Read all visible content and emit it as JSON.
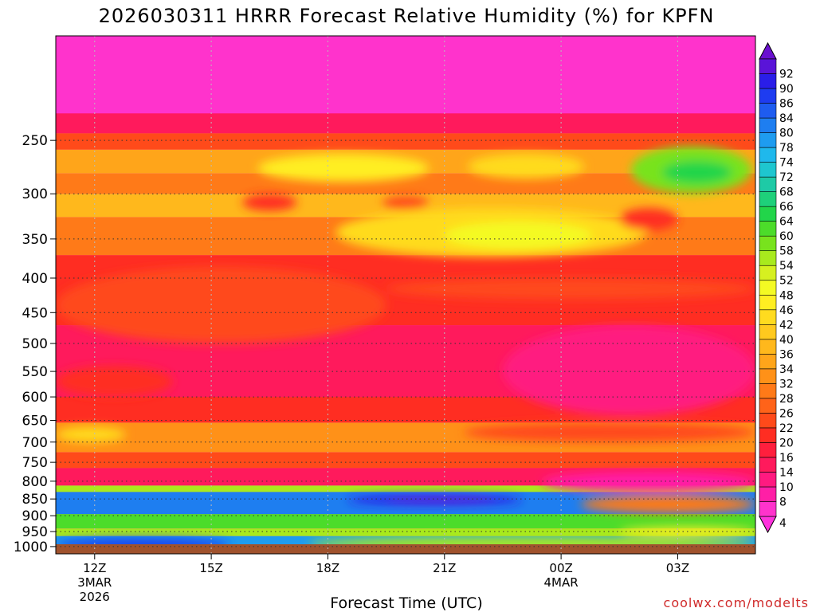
{
  "chart_data": {
    "type": "heatmap",
    "title": "2026030311 HRRR Forecast Relative Humidity (%) for KPFN",
    "xlabel": "Forecast Time (UTC)",
    "credit": "coolwx.com/modelts",
    "x_ticks": [
      {
        "label": "12Z",
        "sub": [
          "3MAR",
          "2026"
        ]
      },
      {
        "label": "15Z",
        "sub": []
      },
      {
        "label": "18Z",
        "sub": []
      },
      {
        "label": "21Z",
        "sub": []
      },
      {
        "label": "00Z",
        "sub": [
          "4MAR"
        ]
      },
      {
        "label": "03Z",
        "sub": []
      }
    ],
    "x_hours": [
      0,
      3,
      6,
      9,
      12,
      15
    ],
    "x_range_hours": [
      -1,
      17
    ],
    "y_ticks": [
      "250",
      "300",
      "350",
      "400",
      "450",
      "500",
      "550",
      "600",
      "650",
      "700",
      "750",
      "800",
      "850",
      "900",
      "950",
      "1000"
    ],
    "y_values": [
      250,
      300,
      350,
      400,
      450,
      500,
      550,
      600,
      650,
      700,
      750,
      800,
      850,
      900,
      950,
      1000
    ],
    "y_range_hpa": [
      175,
      1025
    ],
    "y_scale": "log",
    "colorbar": {
      "levels": [
        4,
        8,
        10,
        14,
        16,
        20,
        22,
        26,
        28,
        32,
        34,
        36,
        40,
        42,
        46,
        48,
        52,
        54,
        58,
        60,
        64,
        66,
        68,
        72,
        74,
        78,
        80,
        84,
        86,
        90,
        92
      ],
      "colors": [
        "#ff33cc",
        "#ff1fa6",
        "#ff1a80",
        "#ff1a5c",
        "#ff1f3d",
        "#ff2d22",
        "#ff4a1a",
        "#ff6319",
        "#ff7a18",
        "#ff9118",
        "#ffa51a",
        "#ffb81c",
        "#ffc91e",
        "#ffdb1f",
        "#ffee22",
        "#f4fa23",
        "#d6f020",
        "#a8ea1d",
        "#78e31d",
        "#4cdc2a",
        "#22d54a",
        "#1ed07a",
        "#1ecaa6",
        "#1ec6cf",
        "#1fb8ec",
        "#1e9cf0",
        "#1e7ef0",
        "#1e5cf0",
        "#1e3cf0",
        "#2a1ee8",
        "#5a14d8"
      ],
      "above_color": "#6a10d0",
      "below_color": "#ff33dd"
    },
    "bands": [
      {
        "p_top": 175,
        "p_bot": 228,
        "rh": 5
      },
      {
        "p_top": 228,
        "p_bot": 244,
        "rh": 15
      },
      {
        "p_top": 244,
        "p_bot": 258,
        "rh": 22
      },
      {
        "p_top": 258,
        "p_bot": 280,
        "rh": 35
      },
      {
        "p_top": 280,
        "p_bot": 300,
        "rh": 30
      },
      {
        "p_top": 300,
        "p_bot": 325,
        "rh": 36
      },
      {
        "p_top": 325,
        "p_bot": 370,
        "rh": 30
      },
      {
        "p_top": 370,
        "p_bot": 470,
        "rh": 21
      },
      {
        "p_top": 470,
        "p_bot": 600,
        "rh": 15
      },
      {
        "p_top": 600,
        "p_bot": 655,
        "rh": 21
      },
      {
        "p_top": 655,
        "p_bot": 725,
        "rh": 32
      },
      {
        "p_top": 725,
        "p_bot": 765,
        "rh": 22
      },
      {
        "p_top": 765,
        "p_bot": 812,
        "rh": 15
      },
      {
        "p_top": 812,
        "p_bot": 830,
        "rh": 55
      },
      {
        "p_top": 830,
        "p_bot": 895,
        "rh": 80
      },
      {
        "p_top": 895,
        "p_bot": 940,
        "rh": 62
      },
      {
        "p_top": 940,
        "p_bot": 965,
        "rh": 56
      },
      {
        "p_top": 965,
        "p_bot": 1015,
        "rh": 78
      }
    ],
    "features": [
      {
        "t0": 4.2,
        "t1": 8.6,
        "p_top": 262,
        "p_bot": 288,
        "rh": 46
      },
      {
        "t0": 9.6,
        "t1": 12.6,
        "p_top": 262,
        "p_bot": 285,
        "rh": 44
      },
      {
        "t0": 13.8,
        "t1": 16.9,
        "p_top": 255,
        "p_bot": 300,
        "rh": 58
      },
      {
        "t0": 14.6,
        "t1": 16.4,
        "p_top": 268,
        "p_bot": 290,
        "rh": 64
      },
      {
        "t0": 6.2,
        "t1": 14.2,
        "p_top": 315,
        "p_bot": 372,
        "rh": 44
      },
      {
        "t0": 9.0,
        "t1": 12.8,
        "p_top": 330,
        "p_bot": 362,
        "rh": 48
      },
      {
        "t0": 3.8,
        "t1": 5.2,
        "p_top": 300,
        "p_bot": 318,
        "rh": 20
      },
      {
        "t0": 7.4,
        "t1": 8.6,
        "p_top": 302,
        "p_bot": 316,
        "rh": 22
      },
      {
        "t0": 13.5,
        "t1": 15.0,
        "p_top": 315,
        "p_bot": 340,
        "rh": 20
      },
      {
        "t0": -1,
        "t1": 7.5,
        "p_top": 385,
        "p_bot": 500,
        "rh": 25
      },
      {
        "t0": 7.5,
        "t1": 17,
        "p_top": 400,
        "p_bot": 430,
        "rh": 25
      },
      {
        "t0": -1,
        "t1": 2.0,
        "p_top": 540,
        "p_bot": 600,
        "rh": 20
      },
      {
        "t0": 10.5,
        "t1": 17,
        "p_top": 470,
        "p_bot": 640,
        "rh": 10
      },
      {
        "t0": -1,
        "t1": 0.8,
        "p_top": 665,
        "p_bot": 700,
        "rh": 42
      },
      {
        "t0": 9.5,
        "t1": 17,
        "p_top": 655,
        "p_bot": 700,
        "rh": 24
      },
      {
        "t0": 11.5,
        "t1": 17,
        "p_top": 775,
        "p_bot": 830,
        "rh": 8
      },
      {
        "t0": 6.5,
        "t1": 11.0,
        "p_top": 838,
        "p_bot": 868,
        "rh": 90
      },
      {
        "t0": 7.5,
        "t1": 10.3,
        "p_top": 842,
        "p_bot": 862,
        "rh": 92
      },
      {
        "t0": 12.5,
        "t1": 17,
        "p_top": 840,
        "p_bot": 892,
        "rh": 28
      },
      {
        "t0": 13.5,
        "t1": 17,
        "p_top": 935,
        "p_bot": 962,
        "rh": 46
      },
      {
        "t0": 5.5,
        "t1": 17,
        "p_top": 965,
        "p_bot": 1015,
        "rh": 55
      },
      {
        "t0": -1,
        "t1": 3.5,
        "p_top": 972,
        "p_bot": 1012,
        "rh": 86
      }
    ]
  }
}
